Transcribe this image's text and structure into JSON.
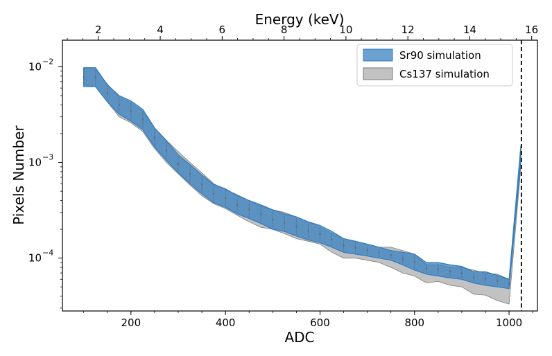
{
  "chart_data": {
    "type": "area",
    "xlabel": "ADC",
    "x2label": "Energy (keV)",
    "ylabel": "Pixels Number",
    "xlim": [
      55,
      1060
    ],
    "ylim": [
      2.8e-05,
      0.019
    ],
    "yscale": "log",
    "x_ticks": [
      200,
      400,
      600,
      800,
      1000
    ],
    "x_tick_labels": [
      "200",
      "400",
      "600",
      "800",
      "1000"
    ],
    "energy_per_adc": 0.01527,
    "x2_ticks": [
      2,
      4,
      6,
      8,
      10,
      12,
      14,
      16
    ],
    "x2_tick_labels": [
      "2",
      "4",
      "6",
      "8",
      "10",
      "12",
      "14",
      "16"
    ],
    "y_ticks": [
      0.0001,
      0.001,
      0.01
    ],
    "y_tick_labels": [
      "10",
      "10",
      "10"
    ],
    "y_tick_exponents": [
      "−4",
      "−3",
      "−2"
    ],
    "vline": {
      "x": 1026,
      "style": "dashed"
    },
    "legend_position": "top-right",
    "series": [
      {
        "name": "Sr90 simulation",
        "color": "#3a82c1",
        "x": [
          100,
          125,
          150,
          175,
          200,
          225,
          250,
          275,
          300,
          325,
          350,
          375,
          400,
          425,
          450,
          475,
          500,
          525,
          550,
          575,
          600,
          625,
          650,
          675,
          700,
          725,
          750,
          775,
          800,
          825,
          850,
          875,
          900,
          925,
          950,
          975,
          1000,
          1025
        ],
        "lower": [
          0.0062,
          0.0062,
          0.0043,
          0.0032,
          0.0027,
          0.0022,
          0.00145,
          0.00105,
          0.00078,
          0.0006,
          0.00047,
          0.00038,
          0.00034,
          0.00029,
          0.00026,
          0.00023,
          0.0002,
          0.00019,
          0.00017,
          0.000155,
          0.000145,
          0.00013,
          0.000115,
          0.00011,
          0.000105,
          0.0001,
          9.5e-05,
          8.5e-05,
          7.5e-05,
          6.8e-05,
          6.5e-05,
          6.2e-05,
          6e-05,
          5.5e-05,
          5.2e-05,
          5e-05,
          4.8e-05,
          0.00105
        ],
        "upper": [
          0.0098,
          0.0098,
          0.0065,
          0.005,
          0.0044,
          0.0036,
          0.0023,
          0.0017,
          0.0012,
          0.00095,
          0.00074,
          0.00059,
          0.00053,
          0.00045,
          0.0004,
          0.00036,
          0.00032,
          0.00029,
          0.00027,
          0.00024,
          0.00022,
          0.00019,
          0.00016,
          0.00015,
          0.00014,
          0.00013,
          0.00012,
          0.000115,
          0.00011,
          9e-05,
          9e-05,
          8.5e-05,
          8.2e-05,
          7.2e-05,
          7.2e-05,
          6.6e-05,
          6e-05,
          0.0015
        ]
      },
      {
        "name": "Cs137 simulation",
        "color": "#9a9a9a",
        "x": [
          100,
          125,
          150,
          175,
          200,
          225,
          250,
          275,
          300,
          325,
          350,
          375,
          400,
          425,
          450,
          475,
          500,
          525,
          550,
          575,
          600,
          625,
          650,
          675,
          700,
          725,
          750,
          775,
          800,
          825,
          850,
          875,
          900,
          925,
          950,
          975,
          1000,
          1025
        ],
        "lower": [
          0.0065,
          0.0062,
          0.0043,
          0.003,
          0.0026,
          0.0021,
          0.0014,
          0.001,
          0.00076,
          0.00058,
          0.00045,
          0.00037,
          0.00033,
          0.00028,
          0.00024,
          0.00021,
          0.0002,
          0.00018,
          0.00016,
          0.00015,
          0.00014,
          0.000115,
          0.0001,
          0.0001,
          9.5e-05,
          9e-05,
          8e-05,
          7e-05,
          6.5e-05,
          5.5e-05,
          5.7e-05,
          5.2e-05,
          5e-05,
          4.2e-05,
          4.1e-05,
          3.6e-05,
          3.3e-05,
          0.0009
        ],
        "upper": [
          0.0098,
          0.0095,
          0.0066,
          0.0048,
          0.0042,
          0.0034,
          0.0023,
          0.0017,
          0.0013,
          0.001,
          0.00078,
          0.0006,
          0.00052,
          0.00046,
          0.0004,
          0.00035,
          0.00032,
          0.0003,
          0.00027,
          0.00024,
          0.00021,
          0.00018,
          0.00016,
          0.00015,
          0.00014,
          0.00013,
          0.00013,
          0.00012,
          0.00011,
          8.5e-05,
          8.5e-05,
          8e-05,
          8e-05,
          7.5e-05,
          7e-05,
          6.8e-05,
          6e-05,
          0.0013
        ]
      }
    ]
  }
}
